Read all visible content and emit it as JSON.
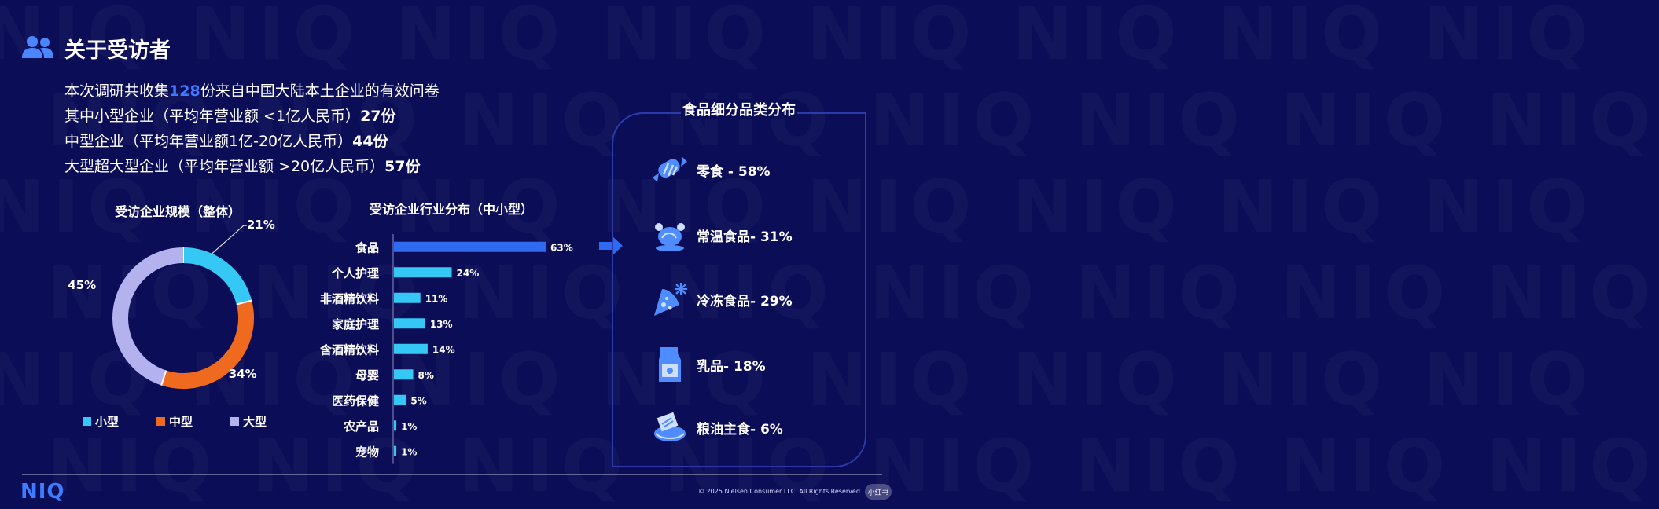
{
  "watermark_text": "NIQ",
  "header": {
    "title": "关于受访者",
    "icon": "users-icon"
  },
  "intro": {
    "line1_pre": "本次调研共收集",
    "line1_hl": "128",
    "line1_post": "份来自中国大陆本土企业的有效问卷",
    "line2_pre": "其中小型企业（平均年营业额 <1亿人民币）",
    "line2_num": "27",
    "line2_post": "份",
    "line3_pre": "中型企业（平均年营业额1亿-20亿人民币）",
    "line3_num": "44",
    "line3_post": "份",
    "line4_pre": "大型超大型企业（平均年营业额 >20亿人民币）",
    "line4_num": "57",
    "line4_post": "份"
  },
  "chart_data": [
    {
      "type": "pie",
      "title": "受访企业规模（整体）",
      "categories": [
        "小型",
        "中型",
        "大型"
      ],
      "values": [
        21,
        34,
        45
      ],
      "labels": [
        "21%",
        "34%",
        "45%"
      ],
      "colors": [
        "#35c8f5",
        "#ef6a1f",
        "#b3b2ee"
      ],
      "legend": "bottom"
    },
    {
      "type": "bar",
      "orientation": "horizontal",
      "title": "受访企业行业分布（中小型）",
      "categories": [
        "食品",
        "个人护理",
        "非酒精饮料",
        "家庭护理",
        "含酒精饮料",
        "母婴",
        "医药保健",
        "农产品",
        "宠物"
      ],
      "values": [
        63,
        24,
        11,
        13,
        14,
        8,
        5,
        1,
        1
      ],
      "labels": [
        "63%",
        "24%",
        "11%",
        "13%",
        "14%",
        "8%",
        "5%",
        "1%",
        "1%"
      ],
      "colors": [
        "#2f6bf0",
        "#35c8f5",
        "#35c8f5",
        "#35c8f5",
        "#35c8f5",
        "#35c8f5",
        "#35c8f5",
        "#35c8f5",
        "#35c8f5"
      ]
    }
  ],
  "food_panel": {
    "title": "食品细分品类分布",
    "items": [
      {
        "label": "零食 - 58%",
        "icon": "candy-icon"
      },
      {
        "label": "常温食品- 31%",
        "icon": "roast-chicken-icon"
      },
      {
        "label": "冷冻食品- 29%",
        "icon": "frozen-pizza-icon"
      },
      {
        "label": "乳品- 18%",
        "icon": "milk-carton-icon"
      },
      {
        "label": "粮油主食- 6%",
        "icon": "grain-bag-icon"
      }
    ]
  },
  "footer": {
    "logo": "NIQ",
    "copyright": "© 2025 Nielsen Consumer LLC. All Rights Reserved.",
    "badge": "小红书"
  }
}
